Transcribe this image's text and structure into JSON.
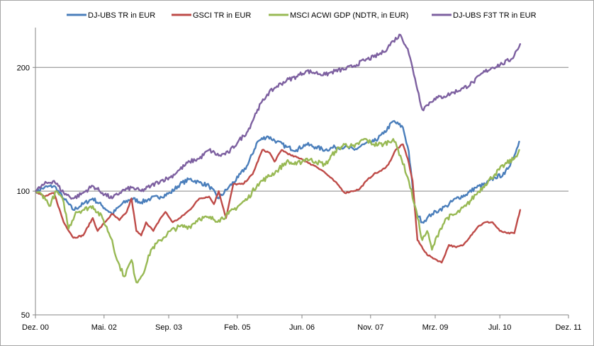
{
  "chart_data": {
    "type": "line",
    "title": "",
    "xlabel": "",
    "ylabel": "",
    "y_scale": "log",
    "ylim": [
      50,
      250
    ],
    "y_ticks": [
      {
        "value": 50,
        "label": "50"
      },
      {
        "value": 100,
        "label": "100"
      },
      {
        "value": 200,
        "label": "200"
      }
    ],
    "x_range": [
      2000.917,
      2011.917
    ],
    "x_ticks": [
      {
        "value": 2000.917,
        "label": "Dez. 00"
      },
      {
        "value": 2002.333,
        "label": "Mai. 02"
      },
      {
        "value": 2003.667,
        "label": "Sep. 03"
      },
      {
        "value": 2005.083,
        "label": "Feb. 05"
      },
      {
        "value": 2006.417,
        "label": "Jun. 06"
      },
      {
        "value": 2007.833,
        "label": "Nov. 07"
      },
      {
        "value": 2009.167,
        "label": "Mrz. 09"
      },
      {
        "value": 2010.5,
        "label": "Jul. 10"
      },
      {
        "value": 2011.917,
        "label": "Dez. 11"
      }
    ],
    "legend_position": "top",
    "gridlines": "horizontal",
    "series": [
      {
        "name": "DJ-UBS TR in EUR",
        "color": "#4a7ebb",
        "x": [
          2000.92,
          2001.1,
          2001.3,
          2001.5,
          2001.7,
          2001.9,
          2002.1,
          2002.3,
          2002.5,
          2002.7,
          2002.9,
          2003.1,
          2003.3,
          2003.5,
          2003.7,
          2003.9,
          2004.1,
          2004.3,
          2004.5,
          2004.7,
          2004.9,
          2005.1,
          2005.3,
          2005.5,
          2005.7,
          2005.9,
          2006.1,
          2006.3,
          2006.5,
          2006.7,
          2006.9,
          2007.1,
          2007.3,
          2007.5,
          2007.7,
          2007.9,
          2008.1,
          2008.3,
          2008.5,
          2008.62,
          2008.75,
          2008.9,
          2009.0,
          2009.1,
          2009.25,
          2009.4,
          2009.6,
          2009.8,
          2010.0,
          2010.2,
          2010.4,
          2010.6,
          2010.8,
          2010.9
        ],
        "values": [
          100,
          102,
          103,
          96,
          90,
          93,
          96,
          92,
          88,
          93,
          96,
          94,
          96,
          97,
          99,
          104,
          107,
          105,
          103,
          96,
          102,
          108,
          116,
          132,
          136,
          132,
          128,
          126,
          130,
          128,
          126,
          128,
          128,
          126,
          130,
          132,
          138,
          148,
          143,
          125,
          90,
          84,
          86,
          88,
          90,
          92,
          96,
          98,
          102,
          104,
          108,
          110,
          122,
          132
        ]
      },
      {
        "name": "GSCI TR in EUR",
        "color": "#be4b48",
        "x": [
          2000.92,
          2001.1,
          2001.3,
          2001.5,
          2001.7,
          2001.9,
          2002.1,
          2002.2,
          2002.35,
          2002.5,
          2002.65,
          2002.8,
          2002.9,
          2003.0,
          2003.1,
          2003.2,
          2003.35,
          2003.5,
          2003.6,
          2003.75,
          2003.9,
          2004.1,
          2004.3,
          2004.5,
          2004.6,
          2004.7,
          2004.85,
          2005.0,
          2005.2,
          2005.4,
          2005.6,
          2005.75,
          2005.85,
          2006.0,
          2006.2,
          2006.4,
          2006.55,
          2006.7,
          2006.85,
          2007.0,
          2007.15,
          2007.3,
          2007.45,
          2007.6,
          2007.75,
          2007.9,
          2008.05,
          2008.2,
          2008.35,
          2008.5,
          2008.6,
          2008.7,
          2008.8,
          2009.0,
          2009.1,
          2009.2,
          2009.3,
          2009.45,
          2009.6,
          2009.75,
          2009.9,
          2010.05,
          2010.2,
          2010.35,
          2010.5,
          2010.65,
          2010.8,
          2010.92
        ],
        "values": [
          100,
          97,
          99,
          84,
          77,
          78,
          86,
          80,
          84,
          88,
          85,
          89,
          96,
          80,
          78,
          84,
          80,
          86,
          89,
          84,
          86,
          90,
          96,
          97,
          93,
          100,
          86,
          104,
          104,
          110,
          126,
          124,
          118,
          126,
          122,
          120,
          117,
          115,
          112,
          108,
          104,
          99,
          100,
          101,
          106,
          110,
          112,
          116,
          126,
          130,
          120,
          106,
          76,
          70,
          69,
          68,
          67,
          74,
          73,
          74,
          78,
          82,
          84,
          84,
          80,
          79,
          79,
          90
        ]
      },
      {
        "name": "MSCI ACWI GDP (NDTR, in EUR)",
        "color": "#98b954",
        "x": [
          2000.92,
          2001.1,
          2001.2,
          2001.35,
          2001.5,
          2001.6,
          2001.75,
          2001.9,
          2002.1,
          2002.3,
          2002.5,
          2002.6,
          2002.75,
          2002.9,
          2003.0,
          2003.1,
          2003.2,
          2003.3,
          2003.5,
          2003.7,
          2003.9,
          2004.1,
          2004.3,
          2004.5,
          2004.7,
          2004.9,
          2005.1,
          2005.3,
          2005.5,
          2005.7,
          2005.9,
          2006.1,
          2006.3,
          2006.5,
          2006.7,
          2006.9,
          2007.1,
          2007.3,
          2007.5,
          2007.7,
          2007.9,
          2008.1,
          2008.3,
          2008.45,
          2008.6,
          2008.75,
          2008.9,
          2009.0,
          2009.1,
          2009.25,
          2009.4,
          2009.6,
          2009.8,
          2010.0,
          2010.2,
          2010.4,
          2010.6,
          2010.8,
          2010.9
        ],
        "values": [
          100,
          97,
          92,
          100,
          94,
          81,
          89,
          90,
          92,
          86,
          76,
          68,
          62,
          68,
          60,
          62,
          66,
          72,
          76,
          80,
          82,
          82,
          86,
          86,
          85,
          88,
          92,
          96,
          104,
          108,
          112,
          118,
          116,
          120,
          118,
          116,
          125,
          130,
          128,
          134,
          130,
          130,
          134,
          122,
          108,
          92,
          76,
          80,
          72,
          80,
          86,
          88,
          92,
          98,
          104,
          110,
          116,
          120,
          126
        ]
      },
      {
        "name": "DJ-UBS F3T TR in EUR",
        "color": "#7d60a0",
        "x": [
          2000.92,
          2001.1,
          2001.3,
          2001.5,
          2001.7,
          2001.9,
          2002.1,
          2002.3,
          2002.5,
          2002.7,
          2002.9,
          2003.1,
          2003.3,
          2003.5,
          2003.7,
          2003.9,
          2004.1,
          2004.3,
          2004.5,
          2004.7,
          2004.9,
          2005.1,
          2005.3,
          2005.5,
          2005.7,
          2005.9,
          2006.1,
          2006.3,
          2006.5,
          2006.7,
          2006.9,
          2007.1,
          2007.3,
          2007.5,
          2007.7,
          2007.9,
          2008.1,
          2008.3,
          2008.45,
          2008.6,
          2008.75,
          2008.9,
          2009.0,
          2009.15,
          2009.35,
          2009.55,
          2009.75,
          2009.95,
          2010.15,
          2010.35,
          2010.55,
          2010.75,
          2010.92
        ],
        "values": [
          100,
          104,
          106,
          99,
          96,
          99,
          103,
          99,
          96,
          100,
          102,
          100,
          103,
          106,
          108,
          113,
          118,
          120,
          126,
          122,
          124,
          132,
          140,
          158,
          172,
          180,
          186,
          190,
          196,
          194,
          192,
          196,
          198,
          202,
          208,
          212,
          218,
          232,
          240,
          222,
          188,
          158,
          162,
          168,
          170,
          174,
          178,
          184,
          194,
          200,
          204,
          210,
          228
        ]
      }
    ]
  }
}
